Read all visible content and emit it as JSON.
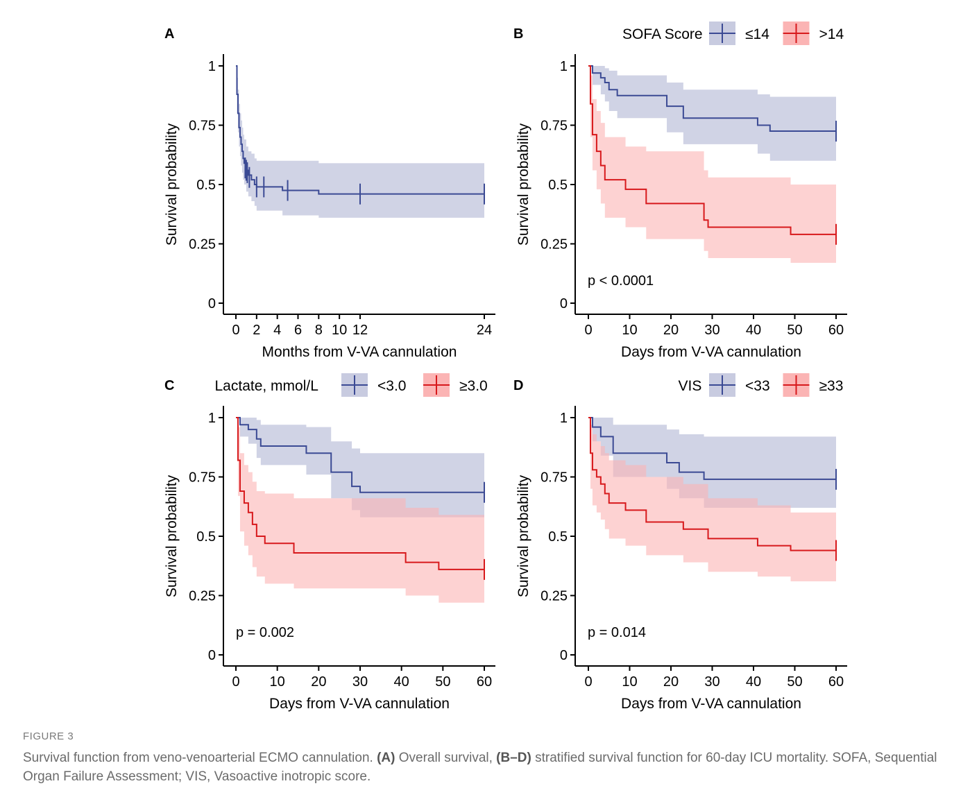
{
  "caption": {
    "label": "FIGURE 3",
    "t1": "Survival function from veno-venoarterial ECMO cannulation. ",
    "b1": "(A)",
    "t2": " Overall survival, ",
    "b2": "(B–D)",
    "t3": " stratified survival function for 60-day ICU mortality. SOFA, Sequential Organ Failure Assessment; VIS, Vasoactive inotropic score."
  },
  "colors": {
    "blue": "#3b4a94",
    "red": "#d7191c",
    "blue_band": "#c8cbe0",
    "red_band": "#fbb4b4"
  },
  "chart_data": [
    {
      "id": "A",
      "type": "line",
      "panel_label": "A",
      "xlabel": "Months from V-VA cannulation",
      "ylabel": "Survival probability",
      "xlim": [
        0,
        24
      ],
      "ylim": [
        0,
        1
      ],
      "xticks": [
        0,
        2,
        4,
        6,
        8,
        10,
        12,
        24
      ],
      "yticks": [
        0,
        0.25,
        0.5,
        0.75,
        1
      ],
      "ytick_labels": [
        "0",
        "0.25",
        "0.5",
        "0.75",
        "1"
      ],
      "legend_title": "",
      "pvalue": "",
      "series": [
        {
          "key": "blue",
          "x": [
            0,
            0.1,
            0.2,
            0.3,
            0.4,
            0.5,
            0.6,
            0.7,
            0.8,
            1.0,
            1.2,
            1.5,
            1.8,
            2.0,
            4.5,
            8.0,
            24
          ],
          "y": [
            1,
            0.88,
            0.8,
            0.74,
            0.7,
            0.67,
            0.64,
            0.61,
            0.59,
            0.56,
            0.54,
            0.52,
            0.5,
            0.49,
            0.475,
            0.46,
            0.46
          ],
          "lower": [
            1,
            0.8,
            0.72,
            0.66,
            0.62,
            0.58,
            0.55,
            0.52,
            0.5,
            0.47,
            0.45,
            0.43,
            0.41,
            0.39,
            0.37,
            0.36,
            0.36
          ],
          "upper": [
            1,
            0.95,
            0.9,
            0.84,
            0.8,
            0.77,
            0.74,
            0.71,
            0.69,
            0.66,
            0.64,
            0.63,
            0.61,
            0.6,
            0.6,
            0.59,
            0.59
          ],
          "censors": [
            [
              0.9,
              0.57
            ],
            [
              1.0,
              0.56
            ],
            [
              1.1,
              0.55
            ],
            [
              1.3,
              0.53
            ],
            [
              2.0,
              0.49
            ],
            [
              2.7,
              0.49
            ],
            [
              5.0,
              0.475
            ],
            [
              12.0,
              0.46
            ],
            [
              24,
              0.46
            ]
          ]
        }
      ]
    },
    {
      "id": "B",
      "type": "line",
      "panel_label": "B",
      "xlabel": "Days from V-VA cannulation",
      "ylabel": "Survival probability",
      "xlim": [
        0,
        60
      ],
      "ylim": [
        0,
        1
      ],
      "xticks": [
        0,
        10,
        20,
        30,
        40,
        50,
        60
      ],
      "yticks": [
        0,
        0.25,
        0.5,
        0.75,
        1
      ],
      "ytick_labels": [
        "0",
        "0.25",
        "0.5",
        "0.75",
        "1"
      ],
      "legend_title": "SOFA Score",
      "pvalue": "p < 0.0001",
      "series": [
        {
          "key": "blue",
          "name": "≤14",
          "x": [
            0,
            1,
            3,
            4,
            5,
            7,
            19,
            23,
            41,
            44,
            60
          ],
          "y": [
            1,
            0.97,
            0.95,
            0.93,
            0.9,
            0.875,
            0.83,
            0.78,
            0.75,
            0.725,
            0.725
          ],
          "lower": [
            1,
            0.92,
            0.88,
            0.85,
            0.81,
            0.78,
            0.72,
            0.67,
            0.63,
            0.6,
            0.6
          ],
          "upper": [
            1,
            1,
            1,
            0.99,
            0.98,
            0.96,
            0.93,
            0.9,
            0.88,
            0.87,
            0.87
          ],
          "censors": [
            [
              60,
              0.725
            ]
          ]
        },
        {
          "key": "red",
          "name": ">14",
          "x": [
            0,
            0.5,
            1,
            2,
            3,
            4,
            5,
            9,
            14,
            28,
            29,
            49,
            60
          ],
          "y": [
            1,
            0.84,
            0.71,
            0.64,
            0.58,
            0.52,
            0.52,
            0.48,
            0.42,
            0.35,
            0.32,
            0.29,
            0.29
          ],
          "lower": [
            1,
            0.7,
            0.56,
            0.48,
            0.42,
            0.36,
            0.36,
            0.32,
            0.27,
            0.22,
            0.19,
            0.17,
            0.17
          ],
          "upper": [
            1,
            0.96,
            0.86,
            0.81,
            0.76,
            0.7,
            0.7,
            0.66,
            0.64,
            0.56,
            0.53,
            0.5,
            0.5
          ],
          "censors": [
            [
              60,
              0.29
            ]
          ]
        }
      ]
    },
    {
      "id": "C",
      "type": "line",
      "panel_label": "C",
      "xlabel": "Days from V-VA cannulation",
      "ylabel": "Survival probability",
      "xlim": [
        0,
        60
      ],
      "ylim": [
        0,
        1
      ],
      "xticks": [
        0,
        10,
        20,
        30,
        40,
        50,
        60
      ],
      "yticks": [
        0,
        0.25,
        0.5,
        0.75,
        1
      ],
      "ytick_labels": [
        "0",
        "0.25",
        "0.5",
        "0.75",
        "1"
      ],
      "legend_title": "Lactate, mmol/L",
      "pvalue": "p = 0.002",
      "series": [
        {
          "key": "blue",
          "name": "<3.0",
          "x": [
            0,
            1,
            3,
            5,
            6,
            10,
            17,
            23,
            28,
            30,
            60
          ],
          "y": [
            1,
            0.97,
            0.95,
            0.91,
            0.88,
            0.88,
            0.85,
            0.77,
            0.71,
            0.685,
            0.685
          ],
          "lower": [
            1,
            0.92,
            0.89,
            0.83,
            0.8,
            0.8,
            0.76,
            0.66,
            0.61,
            0.58,
            0.58
          ],
          "upper": [
            1,
            1,
            1,
            0.99,
            0.97,
            0.97,
            0.96,
            0.9,
            0.87,
            0.85,
            0.85
          ],
          "censors": [
            [
              60,
              0.685
            ]
          ]
        },
        {
          "key": "red",
          "name": "≥3.0",
          "x": [
            0,
            0.5,
            1,
            2,
            3,
            4,
            5,
            6,
            7,
            14,
            41,
            49,
            60
          ],
          "y": [
            1,
            0.82,
            0.69,
            0.64,
            0.6,
            0.55,
            0.5,
            0.5,
            0.47,
            0.43,
            0.39,
            0.36,
            0.36
          ],
          "lower": [
            1,
            0.67,
            0.52,
            0.46,
            0.42,
            0.37,
            0.33,
            0.33,
            0.3,
            0.28,
            0.25,
            0.22,
            0.22
          ],
          "upper": [
            1,
            0.96,
            0.85,
            0.8,
            0.77,
            0.73,
            0.69,
            0.69,
            0.68,
            0.66,
            0.62,
            0.59,
            0.59
          ],
          "censors": [
            [
              60,
              0.36
            ]
          ]
        }
      ]
    },
    {
      "id": "D",
      "type": "line",
      "panel_label": "D",
      "xlabel": "Days from V-VA cannulation",
      "ylabel": "Survival probability",
      "xlim": [
        0,
        60
      ],
      "ylim": [
        0,
        1
      ],
      "xticks": [
        0,
        10,
        20,
        30,
        40,
        50,
        60
      ],
      "yticks": [
        0,
        0.25,
        0.5,
        0.75,
        1
      ],
      "ytick_labels": [
        "0",
        "0.25",
        "0.5",
        "0.75",
        "1"
      ],
      "legend_title": "VIS",
      "pvalue": "p = 0.014",
      "series": [
        {
          "key": "blue",
          "name": "<33",
          "x": [
            0,
            1,
            3,
            6,
            19,
            22,
            28,
            60
          ],
          "y": [
            1,
            0.96,
            0.92,
            0.85,
            0.81,
            0.77,
            0.74,
            0.74
          ],
          "lower": [
            1,
            0.9,
            0.84,
            0.75,
            0.7,
            0.66,
            0.62,
            0.62
          ],
          "upper": [
            1,
            1,
            1,
            0.97,
            0.95,
            0.93,
            0.92,
            0.92
          ],
          "censors": [
            [
              60,
              0.74
            ]
          ]
        },
        {
          "key": "red",
          "name": "≥33",
          "x": [
            0,
            0.5,
            1,
            2,
            3,
            4,
            5,
            9,
            14,
            23,
            29,
            41,
            49,
            60
          ],
          "y": [
            1,
            0.85,
            0.78,
            0.75,
            0.72,
            0.68,
            0.64,
            0.61,
            0.56,
            0.53,
            0.49,
            0.46,
            0.44,
            0.44
          ],
          "lower": [
            1,
            0.7,
            0.63,
            0.6,
            0.57,
            0.53,
            0.49,
            0.46,
            0.42,
            0.39,
            0.35,
            0.33,
            0.31,
            0.31
          ],
          "upper": [
            1,
            0.97,
            0.93,
            0.9,
            0.88,
            0.85,
            0.82,
            0.8,
            0.75,
            0.72,
            0.66,
            0.63,
            0.6,
            0.6
          ],
          "censors": [
            [
              60,
              0.44
            ]
          ]
        }
      ]
    }
  ]
}
